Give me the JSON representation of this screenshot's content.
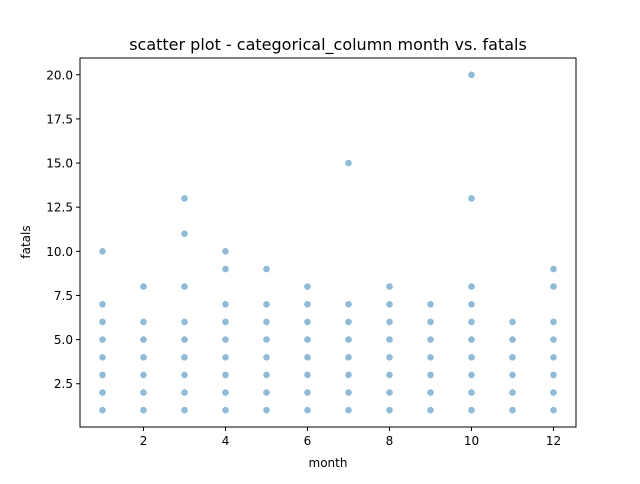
{
  "chart_data": {
    "type": "scatter",
    "title": "scatter plot - categorical_column month vs. fatals",
    "xlabel": "month",
    "ylabel": "fatals",
    "xlim": [
      0.45,
      12.55
    ],
    "ylim": [
      0.05,
      20.95
    ],
    "xticks": [
      2,
      4,
      6,
      8,
      10,
      12
    ],
    "xtick_labels": [
      "2",
      "4",
      "6",
      "8",
      "10",
      "12"
    ],
    "yticks": [
      2.5,
      5.0,
      7.5,
      10.0,
      12.5,
      15.0,
      17.5,
      20.0
    ],
    "ytick_labels": [
      "2.5",
      "5.0",
      "7.5",
      "10.0",
      "12.5",
      "15.0",
      "17.5",
      "20.0"
    ],
    "grid": false,
    "legend": "none",
    "marker_color": "#1f77b4",
    "marker_alpha": 0.5,
    "series": [
      {
        "points": [
          [
            1,
            1
          ],
          [
            1,
            2
          ],
          [
            1,
            3
          ],
          [
            1,
            4
          ],
          [
            1,
            5
          ],
          [
            1,
            6
          ],
          [
            1,
            7
          ],
          [
            1,
            10
          ],
          [
            2,
            1
          ],
          [
            2,
            2
          ],
          [
            2,
            3
          ],
          [
            2,
            4
          ],
          [
            2,
            5
          ],
          [
            2,
            6
          ],
          [
            2,
            8
          ],
          [
            3,
            1
          ],
          [
            3,
            2
          ],
          [
            3,
            3
          ],
          [
            3,
            4
          ],
          [
            3,
            5
          ],
          [
            3,
            6
          ],
          [
            3,
            8
          ],
          [
            3,
            11
          ],
          [
            3,
            13
          ],
          [
            4,
            1
          ],
          [
            4,
            2
          ],
          [
            4,
            3
          ],
          [
            4,
            4
          ],
          [
            4,
            5
          ],
          [
            4,
            6
          ],
          [
            4,
            7
          ],
          [
            4,
            9
          ],
          [
            4,
            10
          ],
          [
            5,
            1
          ],
          [
            5,
            2
          ],
          [
            5,
            3
          ],
          [
            5,
            4
          ],
          [
            5,
            5
          ],
          [
            5,
            6
          ],
          [
            5,
            7
          ],
          [
            5,
            9
          ],
          [
            6,
            1
          ],
          [
            6,
            2
          ],
          [
            6,
            3
          ],
          [
            6,
            4
          ],
          [
            6,
            5
          ],
          [
            6,
            6
          ],
          [
            6,
            7
          ],
          [
            6,
            8
          ],
          [
            7,
            1
          ],
          [
            7,
            2
          ],
          [
            7,
            3
          ],
          [
            7,
            4
          ],
          [
            7,
            5
          ],
          [
            7,
            6
          ],
          [
            7,
            7
          ],
          [
            7,
            15
          ],
          [
            8,
            1
          ],
          [
            8,
            2
          ],
          [
            8,
            3
          ],
          [
            8,
            4
          ],
          [
            8,
            5
          ],
          [
            8,
            6
          ],
          [
            8,
            7
          ],
          [
            8,
            8
          ],
          [
            9,
            1
          ],
          [
            9,
            2
          ],
          [
            9,
            3
          ],
          [
            9,
            4
          ],
          [
            9,
            5
          ],
          [
            9,
            6
          ],
          [
            9,
            7
          ],
          [
            10,
            1
          ],
          [
            10,
            2
          ],
          [
            10,
            3
          ],
          [
            10,
            4
          ],
          [
            10,
            5
          ],
          [
            10,
            6
          ],
          [
            10,
            7
          ],
          [
            10,
            8
          ],
          [
            10,
            13
          ],
          [
            10,
            20
          ],
          [
            11,
            1
          ],
          [
            11,
            2
          ],
          [
            11,
            3
          ],
          [
            11,
            4
          ],
          [
            11,
            5
          ],
          [
            11,
            6
          ],
          [
            12,
            1
          ],
          [
            12,
            2
          ],
          [
            12,
            3
          ],
          [
            12,
            4
          ],
          [
            12,
            5
          ],
          [
            12,
            6
          ],
          [
            12,
            8
          ],
          [
            12,
            9
          ]
        ]
      }
    ]
  }
}
